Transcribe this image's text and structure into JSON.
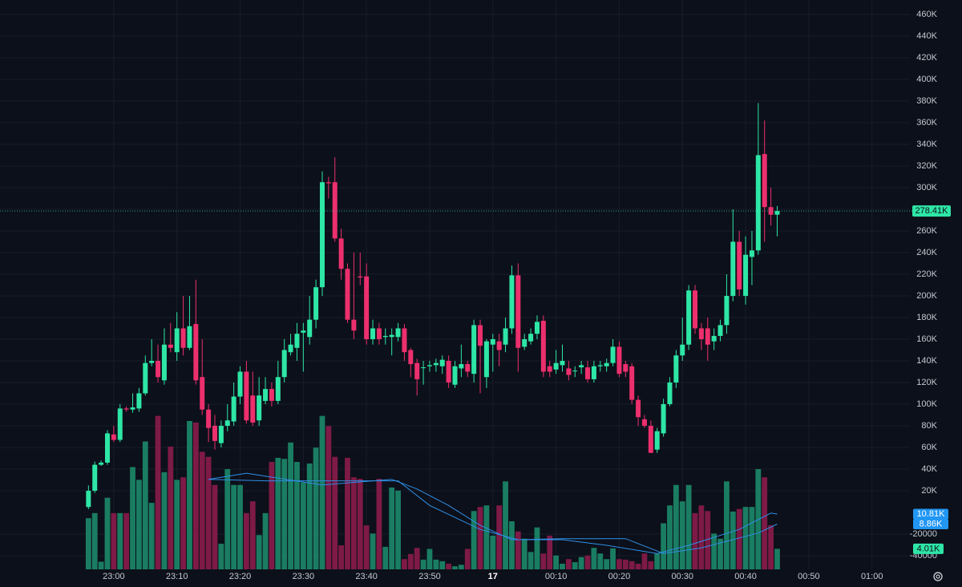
{
  "chart_data": {
    "type": "candlestick",
    "x": [
      "22:56",
      "22:57",
      "22:58",
      "22:59",
      "23:00",
      "23:01",
      "23:02",
      "23:03",
      "23:04",
      "23:05",
      "23:06",
      "23:07",
      "23:08",
      "23:09",
      "23:10",
      "23:11",
      "23:12",
      "23:13",
      "23:14",
      "23:15",
      "23:16",
      "23:17",
      "23:18",
      "23:19",
      "23:20",
      "23:21",
      "23:22",
      "23:23",
      "23:24",
      "23:25",
      "23:26",
      "23:27",
      "23:28",
      "23:29",
      "23:30",
      "23:31",
      "23:32",
      "23:33",
      "23:34",
      "23:35",
      "23:36",
      "23:37",
      "23:38",
      "23:39",
      "23:40",
      "23:41",
      "23:42",
      "23:43",
      "23:44",
      "23:45",
      "23:46",
      "23:47",
      "23:48",
      "23:49",
      "23:50",
      "23:51",
      "23:52",
      "23:53",
      "23:54",
      "23:55",
      "23:56",
      "23:57",
      "23:58",
      "23:59",
      "00:00",
      "00:01",
      "00:02",
      "00:03",
      "00:04",
      "00:05",
      "00:06",
      "00:07",
      "00:08",
      "00:09",
      "00:10",
      "00:11",
      "00:12",
      "00:13",
      "00:14",
      "00:15",
      "00:16",
      "00:17",
      "00:18",
      "00:19",
      "00:20",
      "00:21",
      "00:22",
      "00:23",
      "00:24",
      "00:25",
      "00:26",
      "00:27",
      "00:28",
      "00:29",
      "00:30",
      "00:31",
      "00:32",
      "00:33",
      "00:34",
      "00:35",
      "00:36",
      "00:37",
      "00:38",
      "00:39",
      "00:40",
      "00:41",
      "00:42",
      "00:43",
      "00:44",
      "00:45"
    ],
    "open": [
      5000,
      20000,
      44000,
      46000,
      72000,
      67000,
      96000,
      95000,
      96000,
      110000,
      138000,
      140000,
      122000,
      155000,
      148000,
      170000,
      152000,
      174000,
      125000,
      95000,
      80000,
      64000,
      80000,
      84000,
      107000,
      130000,
      108000,
      85000,
      103000,
      114000,
      103000,
      125000,
      148000,
      152000,
      166000,
      162000,
      178000,
      208000,
      305000,
      305000,
      253000,
      225000,
      178000,
      218000,
      218000,
      160000,
      170000,
      162000,
      162000,
      162000,
      170000,
      150000,
      138000,
      134000,
      135000,
      136000,
      135000,
      140000,
      118000,
      133000,
      137000,
      128000,
      173000,
      125000,
      155000,
      158000,
      155000,
      170000,
      219000,
      153000,
      158000,
      165000,
      177000,
      135000,
      132000,
      136000,
      133000,
      131000,
      134000,
      134000,
      123000,
      135000,
      135000,
      138000,
      153000,
      137000,
      135000,
      104000,
      86000,
      80000,
      58000,
      73000,
      100000,
      120000,
      145000,
      155000,
      205000,
      170000,
      170000,
      158000,
      163000,
      173000,
      200000,
      250000,
      200000,
      236000,
      242000,
      331000,
      282000,
      275000
    ],
    "high": [
      25000,
      47000,
      48000,
      76000,
      80000,
      100000,
      98000,
      110000,
      115000,
      145000,
      160000,
      155000,
      170000,
      175000,
      185000,
      200000,
      200000,
      215000,
      160000,
      100000,
      90000,
      85000,
      100000,
      120000,
      135000,
      140000,
      130000,
      125000,
      125000,
      120000,
      140000,
      160000,
      165000,
      175000,
      175000,
      200000,
      215000,
      315000,
      310000,
      328000,
      262000,
      230000,
      240000,
      240000,
      230000,
      178000,
      175000,
      170000,
      170000,
      175000,
      174000,
      152000,
      142000,
      140000,
      140000,
      142000,
      145000,
      145000,
      140000,
      155000,
      140000,
      178000,
      178000,
      160000,
      165000,
      165000,
      180000,
      228000,
      230000,
      165000,
      170000,
      182000,
      182000,
      140000,
      150000,
      155000,
      140000,
      135000,
      140000,
      140000,
      140000,
      140000,
      142000,
      160000,
      158000,
      140000,
      138000,
      108000,
      90000,
      85000,
      78000,
      105000,
      125000,
      150000,
      180000,
      210000,
      210000,
      175000,
      180000,
      170000,
      178000,
      220000,
      280000,
      260000,
      255000,
      260000,
      378000,
      362000,
      300000,
      283000
    ],
    "low": [
      3000,
      18000,
      43000,
      44000,
      65000,
      65000,
      93000,
      92000,
      93000,
      108000,
      135000,
      120000,
      118000,
      148000,
      140000,
      145000,
      150000,
      118000,
      90000,
      65000,
      58000,
      60000,
      75000,
      80000,
      100000,
      82000,
      80000,
      80000,
      100000,
      98000,
      100000,
      120000,
      145000,
      140000,
      130000,
      155000,
      170000,
      200000,
      290000,
      250000,
      215000,
      175000,
      160000,
      210000,
      155000,
      155000,
      155000,
      155000,
      145000,
      158000,
      140000,
      125000,
      108000,
      118000,
      130000,
      130000,
      128000,
      115000,
      115000,
      125000,
      125000,
      120000,
      110000,
      115000,
      130000,
      135000,
      148000,
      165000,
      130000,
      150000,
      155000,
      160000,
      125000,
      125000,
      128000,
      130000,
      122000,
      125000,
      128000,
      120000,
      120000,
      130000,
      130000,
      135000,
      125000,
      125000,
      100000,
      80000,
      78000,
      55000,
      55000,
      70000,
      98000,
      115000,
      140000,
      150000,
      165000,
      150000,
      140000,
      150000,
      158000,
      165000,
      195000,
      200000,
      192000,
      210000,
      238000,
      250000,
      265000,
      255000
    ],
    "close": [
      20000,
      44000,
      46000,
      73000,
      67000,
      96000,
      95000,
      97000,
      110000,
      138000,
      140000,
      125000,
      155000,
      152000,
      170000,
      152000,
      172000,
      122000,
      95000,
      78000,
      66000,
      80000,
      85000,
      107000,
      130000,
      85000,
      83000,
      108000,
      114000,
      103000,
      125000,
      150000,
      155000,
      165000,
      168000,
      178000,
      208000,
      305000,
      304000,
      253000,
      225000,
      178000,
      168000,
      217000,
      160000,
      170000,
      160000,
      163000,
      164000,
      170000,
      148000,
      137000,
      123000,
      134000,
      136000,
      138000,
      141000,
      120000,
      135000,
      137000,
      130000,
      173000,
      154000,
      158000,
      160000,
      150000,
      170000,
      219000,
      152000,
      160000,
      165000,
      176000,
      130000,
      130000,
      138000,
      140000,
      127000,
      131000,
      136000,
      123000,
      135000,
      136000,
      138000,
      153000,
      128000,
      130000,
      104000,
      88000,
      80000,
      55000,
      75000,
      100000,
      120000,
      145000,
      155000,
      205000,
      170000,
      160000,
      155000,
      163000,
      173000,
      200000,
      250000,
      206000,
      238000,
      242000,
      330000,
      282000,
      275000,
      278410
    ],
    "volume": [
      10000,
      11000,
      1500,
      14000,
      11000,
      11000,
      11000,
      20000,
      17500,
      25000,
      13000,
      30000,
      19000,
      24000,
      17500,
      18000,
      29000,
      28700,
      23000,
      22000,
      16500,
      5000,
      19600,
      16500,
      16500,
      11000,
      13300,
      6700,
      11000,
      21000,
      21800,
      21600,
      24800,
      21000,
      17000,
      20700,
      23800,
      30000,
      28000,
      22000,
      4700,
      21800,
      18000,
      17700,
      8600,
      7000,
      17700,
      4400,
      16000,
      15400,
      2000,
      3000,
      4200,
      1900,
      4000,
      1900,
      1600,
      1100,
      600,
      900,
      4000,
      11400,
      12200,
      12500,
      6600,
      12500,
      17200,
      9400,
      7400,
      6000,
      3400,
      8200,
      3100,
      6600,
      2700,
      1100,
      2000,
      1400,
      2400,
      2700,
      4200,
      3100,
      2000,
      4100,
      2000,
      1900,
      1600,
      1100,
      3100,
      1600,
      3100,
      9000,
      12500,
      16500,
      13300,
      16500,
      11000,
      12500,
      11400,
      7000,
      6000,
      17200,
      11300,
      11800,
      12200,
      12200,
      19600,
      18000,
      8600,
      4010
    ],
    "volume_label": "4.01K",
    "price_label": "278.41K",
    "volume_ma": [
      {
        "color": "#2f8fe6",
        "x": [
          "23:15",
          "23:21",
          "23:33",
          "23:44",
          "23:48",
          "23:53",
          "23:58",
          "00:03",
          "00:11",
          "00:18",
          "00:26",
          "00:31",
          "00:39",
          "00:44",
          "00:45"
        ],
        "values": [
          17600,
          18800,
          16500,
          17600,
          15700,
          12500,
          8600,
          5800,
          5800,
          4700,
          3100,
          4700,
          7800,
          11000,
          10810
        ],
        "label": "10.81K"
      },
      {
        "color": "#2f8fe6",
        "x": [
          "23:15",
          "23:24",
          "23:38",
          "23:45",
          "23:50",
          "23:58",
          "00:04",
          "00:11",
          "00:21",
          "00:27",
          "00:33",
          "00:42",
          "00:45"
        ],
        "values": [
          17600,
          17300,
          17300,
          17300,
          12500,
          7800,
          5800,
          6000,
          6000,
          3100,
          4200,
          7100,
          8860
        ],
        "label": "8.86K"
      }
    ],
    "up_color": "#2ee6a6",
    "down_color": "#ec2f6d",
    "volume_up_color": "#1a7d62",
    "volume_down_color": "#7e1a46",
    "label_up_color": "#2ee6a6",
    "label_ma_color": "#2196f3",
    "xlim": [
      "22:42",
      "01:06"
    ],
    "xticks": [
      "23:00",
      "23:10",
      "23:20",
      "23:30",
      "23:40",
      "23:50",
      {
        "value": "00:00",
        "label": "17"
      },
      "00:10",
      "00:20",
      "00:30",
      "00:40",
      "00:50",
      "01:00"
    ],
    "ylim": [
      -52600,
      473300
    ],
    "volume_lim": [
      0,
      111300
    ],
    "yticks": [
      {
        "value": 460000,
        "label": "460K"
      },
      {
        "value": 440000,
        "label": "440K"
      },
      {
        "value": 420000,
        "label": "420K"
      },
      {
        "value": 400000,
        "label": "400K"
      },
      {
        "value": 380000,
        "label": "380K"
      },
      {
        "value": 360000,
        "label": "360K"
      },
      {
        "value": 340000,
        "label": "340K"
      },
      {
        "value": 320000,
        "label": "320K"
      },
      {
        "value": 300000,
        "label": "300K"
      },
      {
        "value": 280000,
        "label": "280K"
      },
      {
        "value": 260000,
        "label": "260K"
      },
      {
        "value": 240000,
        "label": "240K"
      },
      {
        "value": 220000,
        "label": "220K"
      },
      {
        "value": 200000,
        "label": "200K"
      },
      {
        "value": 180000,
        "label": "180K"
      },
      {
        "value": 160000,
        "label": "160K"
      },
      {
        "value": 140000,
        "label": "140K"
      },
      {
        "value": 120000,
        "label": "120K"
      },
      {
        "value": 100000,
        "label": "100K"
      },
      {
        "value": 80000,
        "label": "80K"
      },
      {
        "value": 60000,
        "label": "60K"
      },
      {
        "value": 40000,
        "label": "40K"
      },
      {
        "value": 20000,
        "label": "20K"
      },
      -20000,
      -40000
    ],
    "grid": true
  }
}
